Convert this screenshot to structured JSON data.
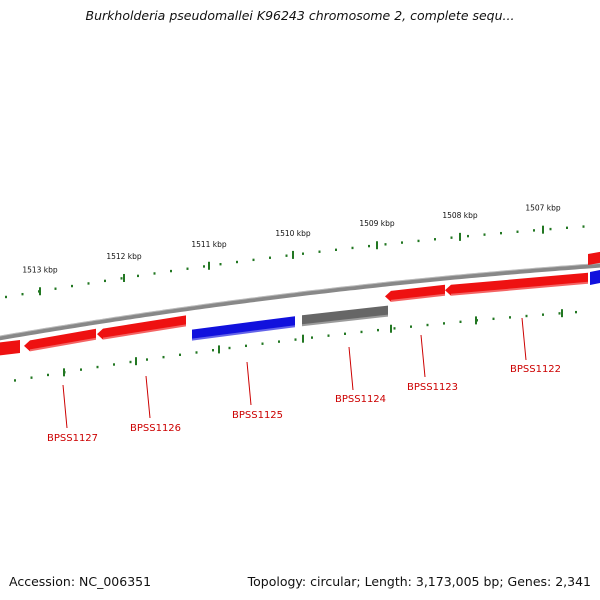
{
  "title": "Burkholderia pseudomallei K96243 chromosome 2, complete sequ...",
  "footer": {
    "accession": "Accession: NC_006351",
    "summary": "Topology: circular; Length: 3,173,005 bp; Genes: 2,341"
  },
  "colors": {
    "forward": "#ee1111",
    "reverse": "#1111dd",
    "other": "#666666",
    "backbone": "#888888",
    "ticks": "#227722",
    "labels": "#cc0000"
  },
  "ruler": [
    {
      "label": "1513 kbp"
    },
    {
      "label": "1512 kbp"
    },
    {
      "label": "1511 kbp"
    },
    {
      "label": "1510 kbp"
    },
    {
      "label": "1509 kbp"
    },
    {
      "label": "1508 kbp"
    },
    {
      "label": "1507 kbp"
    }
  ],
  "genes": [
    {
      "name": "BPSS1127",
      "strand": "forward",
      "color": "forward"
    },
    {
      "name": "BPSS1126",
      "strand": "forward",
      "color": "forward"
    },
    {
      "name": "BPSS1125",
      "strand": "reverse",
      "color": "reverse"
    },
    {
      "name": "BPSS1124",
      "strand": "reverse",
      "color": "other"
    },
    {
      "name": "BPSS1123",
      "strand": "forward",
      "color": "forward"
    },
    {
      "name": "BPSS1122",
      "strand": "forward",
      "color": "forward"
    }
  ]
}
